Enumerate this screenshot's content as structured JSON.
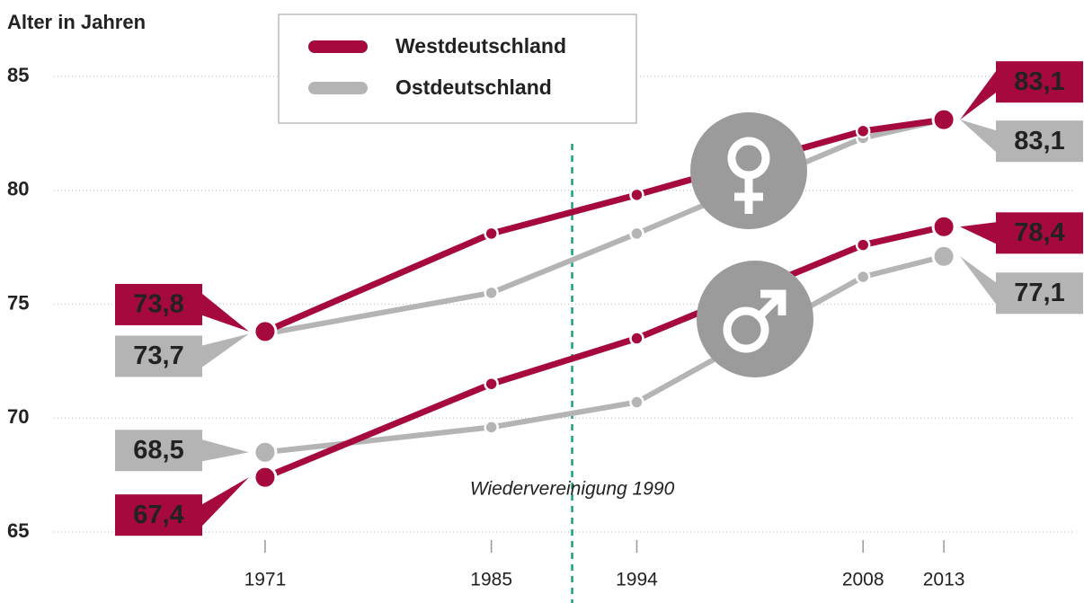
{
  "chart_data": {
    "type": "line",
    "y_label": "Alter in Jahren",
    "x": [
      1971,
      1985,
      1994,
      2008,
      2013
    ],
    "series": [
      {
        "name": "Westdeutschland",
        "color": "#a6093d",
        "values": [
          73.8,
          78.1,
          79.8,
          82.6,
          83.1
        ],
        "value_labels": [
          "73,8",
          null,
          null,
          null,
          "83,1"
        ]
      },
      {
        "name": "Ostdeutschland",
        "color": "#b4b4b4",
        "values": [
          73.7,
          75.5,
          78.1,
          82.3,
          83.1
        ],
        "value_labels": [
          "73,7",
          null,
          null,
          null,
          "83,1"
        ]
      },
      {
        "name": "Westdeutschland",
        "color": "#a6093d",
        "values": [
          67.4,
          71.5,
          73.5,
          77.6,
          78.4
        ],
        "value_labels": [
          "67,4",
          null,
          null,
          null,
          "78,4"
        ]
      },
      {
        "name": "Ostdeutschland",
        "color": "#b4b4b4",
        "values": [
          68.5,
          69.6,
          70.7,
          76.2,
          77.1
        ],
        "value_labels": [
          "68,5",
          null,
          null,
          null,
          "77,1"
        ]
      }
    ],
    "annotation": {
      "text": "Wiedervereinigung 1990",
      "x": 1990
    },
    "xlim": [
      1968,
      2017
    ],
    "xticks": [
      1971,
      1985,
      1994,
      2008,
      2013
    ],
    "ylim": [
      65,
      85
    ],
    "yticks": [
      65,
      70,
      75,
      80,
      85
    ],
    "grid": true
  }
}
